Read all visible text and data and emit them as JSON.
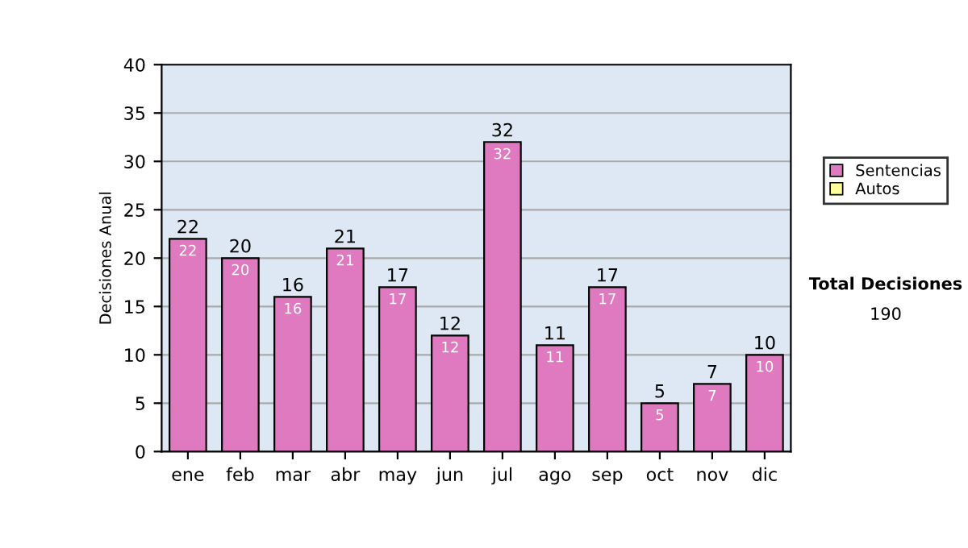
{
  "chart_data": {
    "type": "bar",
    "ylabel": "Decisiones Anual",
    "categories": [
      "ene",
      "feb",
      "mar",
      "abr",
      "may",
      "jun",
      "jul",
      "ago",
      "sep",
      "oct",
      "nov",
      "dic"
    ],
    "stacked": true,
    "series": [
      {
        "name": "Sentencias",
        "color": "#e07ac0",
        "values": [
          22,
          20,
          16,
          21,
          17,
          12,
          32,
          11,
          17,
          5,
          7,
          10
        ],
        "value_labels": [
          "22",
          "20",
          "16",
          "21",
          "17",
          "12",
          "32",
          "11",
          "17",
          "5",
          "7",
          "10"
        ]
      },
      {
        "name": "Autos",
        "color": "#ffff99",
        "values": [
          0,
          0,
          0,
          0,
          0,
          0,
          0,
          0,
          0,
          0,
          0,
          0
        ]
      }
    ],
    "totals": [
      "22",
      "20",
      "16",
      "21",
      "17",
      "12",
      "32",
      "11",
      "17",
      "5",
      "7",
      "10"
    ],
    "ylim": [
      0,
      40
    ],
    "yticks": [
      0,
      5,
      10,
      15,
      20,
      25,
      30,
      35,
      40
    ],
    "grid": "y",
    "legend": "right",
    "annotations": [
      "Total Decisiones",
      "190"
    ]
  }
}
